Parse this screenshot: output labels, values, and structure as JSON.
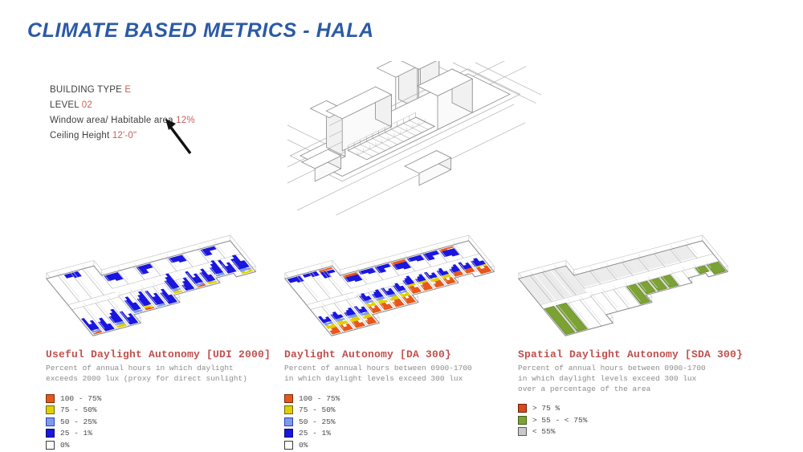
{
  "slide": {
    "title": "CLIMATE BASED METRICS - HALA"
  },
  "building_info": {
    "rows": [
      {
        "label": "BUILDING TYPE",
        "value": "E"
      },
      {
        "label": "LEVEL",
        "value": "02"
      },
      {
        "label": "Window area/ Habitable area",
        "value": "12%"
      },
      {
        "label": "Ceiling Height",
        "value": "12'-0\""
      }
    ]
  },
  "colors": {
    "title_blue": "#2b5aa6",
    "accent_red": "#c4615c",
    "metric_red": "#c0504d"
  },
  "metrics": [
    {
      "title": "Useful Daylight Autonomy [UDI 2000]",
      "description": "Percent of annual hours in which daylight\nexceeds 2000 lux (proxy for direct sunlight)",
      "legend": [
        {
          "label": "100 - 75%",
          "color": "#e8571a",
          "border": "#7a2d0c"
        },
        {
          "label": "75 - 50%",
          "color": "#e0d000",
          "border": "#6e6600"
        },
        {
          "label": "50 - 25%",
          "color": "#7e9be8",
          "border": "#2b3fbf"
        },
        {
          "label": "25 - 1%",
          "color": "#1a16df",
          "border": "#0a0870"
        },
        {
          "label": "0%",
          "color": "#ffffff",
          "border": "#3c3c3c"
        }
      ],
      "plan": {
        "kind": "blobs",
        "layers": [
          {
            "color": "#e8571a",
            "depth": 3,
            "every": 5
          },
          {
            "color": "#e0d000",
            "depth": 4,
            "every": 3
          },
          {
            "color": "#7e9be8",
            "depth": 4,
            "every": 2
          },
          {
            "color": "#1a16df",
            "depth": 17,
            "every": 1
          }
        ],
        "back_layers": [
          {
            "color": "#1a16df",
            "depth": 9,
            "every": 2
          }
        ]
      }
    },
    {
      "title": "Daylight Autonomy [DA 300}",
      "description": "Percent of annual hours between 0900-1700\nin which daylight levels exceed 300 lux",
      "legend": [
        {
          "label": "100 - 75%",
          "color": "#e8571a",
          "border": "#7a2d0c"
        },
        {
          "label": "75 - 50%",
          "color": "#e0d000",
          "border": "#6e6600"
        },
        {
          "label": "50 - 25%",
          "color": "#7e9be8",
          "border": "#2b3fbf"
        },
        {
          "label": "25 - 1%",
          "color": "#1a16df",
          "border": "#0a0870"
        },
        {
          "label": "0%",
          "color": "#ffffff",
          "border": "#3c3c3c"
        }
      ],
      "plan": {
        "kind": "blobs",
        "layers": [
          {
            "color": "#e8571a",
            "depth": 11,
            "every": 1
          },
          {
            "color": "#e0d000",
            "depth": 6,
            "every": 1
          },
          {
            "color": "#7e9be8",
            "depth": 4,
            "every": 1
          },
          {
            "color": "#1a16df",
            "depth": 9,
            "every": 1
          }
        ],
        "back_layers": [
          {
            "color": "#e8571a",
            "depth": 4,
            "every": 3
          },
          {
            "color": "#1a16df",
            "depth": 8,
            "every": 1
          }
        ]
      }
    },
    {
      "title": "Spatial Daylight Autonomy [SDA 300}",
      "description": "Percent of annual hours between 0900-1700\nin which daylight levels exceed 300 lux\nover a percentage of the area",
      "legend": [
        {
          "label": "> 75 %",
          "color": "#d9481c",
          "border": "#6e2008"
        },
        {
          "label": "> 55 - < 75%",
          "color": "#7ba233",
          "border": "#44611a"
        },
        {
          "label": "< 55%",
          "color": "#c9c9c9",
          "border": "#5a5a5a"
        }
      ],
      "plan": {
        "kind": "rooms",
        "green": "#7ba233",
        "green_border": "#5d7d23",
        "gray": "#ececec",
        "green_rooms": [
          0,
          1,
          7,
          8,
          9,
          10,
          13,
          14
        ]
      }
    }
  ]
}
